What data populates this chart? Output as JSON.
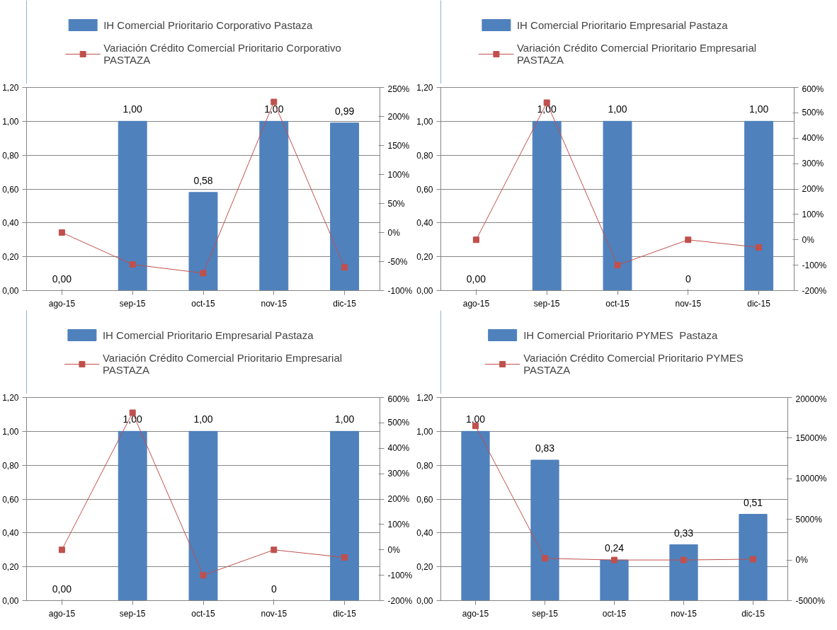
{
  "chart_data": [
    {
      "type": "bar",
      "categories": [
        "ago-15",
        "sep-15",
        "oct-15",
        "nov-15",
        "dic-15"
      ],
      "legend": "top",
      "grid": "y",
      "marker": "square",
      "line_style": "solid",
      "ylim": [
        0,
        1.2
      ],
      "yticks": [
        {
          "value": 0,
          "label": "0,00"
        },
        {
          "value": 0.2,
          "label": "0,20"
        },
        {
          "value": 0.4,
          "label": "0,40"
        },
        {
          "value": 0.6,
          "label": "0,60"
        },
        {
          "value": 0.8,
          "label": "0,80"
        },
        {
          "value": 1.0,
          "label": "1,00"
        },
        {
          "value": 1.2,
          "label": "1,20"
        }
      ],
      "y2lim": [
        -100,
        250
      ],
      "y2ticks": [
        {
          "value": -100,
          "label": "-100%"
        },
        {
          "value": -50,
          "label": "-50%"
        },
        {
          "value": 0,
          "label": "0%"
        },
        {
          "value": 50,
          "label": "50%"
        },
        {
          "value": 100,
          "label": "100%"
        },
        {
          "value": 150,
          "label": "150%"
        },
        {
          "value": 200,
          "label": "200%"
        },
        {
          "value": 250,
          "label": "250%"
        }
      ],
      "series": [
        {
          "name": "IH Comercial Prioritario Corporativo Pastaza",
          "color": "#4f81bd",
          "values": [
            0,
            1.0,
            0.58,
            1.0,
            0.99
          ],
          "value_labels": [
            "0,00",
            "1,00",
            "0,58",
            "1,00",
            "0,99"
          ]
        },
        {
          "name": "Variación Crédito Comercial Prioritario Corporativo PASTAZA",
          "type": "line",
          "axis": "y2",
          "color": "#c0504d",
          "values": [
            0,
            -55,
            -70,
            225,
            -60
          ]
        }
      ]
    },
    {
      "type": "bar",
      "categories": [
        "ago-15",
        "sep-15",
        "oct-15",
        "nov-15",
        "dic-15"
      ],
      "legend": "top",
      "grid": "y",
      "marker": "square",
      "line_style": "solid",
      "ylim": [
        0,
        1.2
      ],
      "yticks": [
        {
          "value": 0,
          "label": "0,00"
        },
        {
          "value": 0.2,
          "label": "0,20"
        },
        {
          "value": 0.4,
          "label": "0,40"
        },
        {
          "value": 0.6,
          "label": "0,60"
        },
        {
          "value": 0.8,
          "label": "0,80"
        },
        {
          "value": 1.0,
          "label": "1,00"
        },
        {
          "value": 1.2,
          "label": "1,20"
        }
      ],
      "y2lim": [
        -200,
        600
      ],
      "y2ticks": [
        {
          "value": -200,
          "label": "-200%"
        },
        {
          "value": -100,
          "label": "-100%"
        },
        {
          "value": 0,
          "label": "0%"
        },
        {
          "value": 100,
          "label": "100%"
        },
        {
          "value": 200,
          "label": "200%"
        },
        {
          "value": 300,
          "label": "300%"
        },
        {
          "value": 400,
          "label": "400%"
        },
        {
          "value": 500,
          "label": "500%"
        },
        {
          "value": 600,
          "label": "600%"
        }
      ],
      "series": [
        {
          "name": "IH Comercial Prioritario Empresarial Pastaza",
          "type": "bar",
          "color": "#4f81bd",
          "values": [
            0,
            1.0,
            1.0,
            0,
            1.0
          ],
          "value_labels": [
            "0,00",
            "1,00",
            "1,00",
            "0",
            "1,00"
          ]
        },
        {
          "name": "Variación Crédito Comercial Prioritario Empresarial PASTAZA",
          "type": "line",
          "axis": "y2",
          "color": "#c0504d",
          "values": [
            0,
            540,
            -100,
            0,
            -30
          ]
        }
      ]
    },
    {
      "type": "bar",
      "categories": [
        "ago-15",
        "sep-15",
        "oct-15",
        "nov-15",
        "dic-15"
      ],
      "legend": "top",
      "grid": "y",
      "marker": "square",
      "line_style": "solid",
      "ylim": [
        0,
        1.2
      ],
      "yticks": [
        {
          "value": 0,
          "label": "0,00"
        },
        {
          "value": 0.2,
          "label": "0,20"
        },
        {
          "value": 0.4,
          "label": "0,40"
        },
        {
          "value": 0.6,
          "label": "0,60"
        },
        {
          "value": 0.8,
          "label": "0,80"
        },
        {
          "value": 1.0,
          "label": "1,00"
        },
        {
          "value": 1.2,
          "label": "1,20"
        }
      ],
      "y2lim": [
        -200,
        600
      ],
      "y2ticks": [
        {
          "value": -200,
          "label": "-200%"
        },
        {
          "value": -100,
          "label": "-100%"
        },
        {
          "value": 0,
          "label": "0%"
        },
        {
          "value": 100,
          "label": "100%"
        },
        {
          "value": 200,
          "label": "200%"
        },
        {
          "value": 300,
          "label": "300%"
        },
        {
          "value": 400,
          "label": "400%"
        },
        {
          "value": 500,
          "label": "500%"
        },
        {
          "value": 600,
          "label": "600%"
        }
      ],
      "series": [
        {
          "name": "IH Comercial Prioritario Empresarial Pastaza",
          "type": "bar",
          "color": "#4f81bd",
          "values": [
            0,
            1.0,
            1.0,
            0,
            1.0
          ],
          "value_labels": [
            "0,00",
            "1,00",
            "1,00",
            "0",
            "1,00"
          ]
        },
        {
          "name": "Variación Crédito Comercial Prioritario Empresarial PASTAZA",
          "type": "line",
          "axis": "y2",
          "color": "#c0504d",
          "values": [
            0,
            540,
            -100,
            0,
            -30
          ]
        }
      ]
    },
    {
      "type": "bar",
      "categories": [
        "ago-15",
        "sep-15",
        "oct-15",
        "nov-15",
        "dic-15"
      ],
      "legend": "top",
      "grid": "y",
      "marker": "square",
      "line_style": "solid",
      "ylim": [
        0,
        1.2
      ],
      "yticks": [
        {
          "value": 0,
          "label": "0,00"
        },
        {
          "value": 0.2,
          "label": "0,20"
        },
        {
          "value": 0.4,
          "label": "0,40"
        },
        {
          "value": 0.6,
          "label": "0,60"
        },
        {
          "value": 0.8,
          "label": "0,80"
        },
        {
          "value": 1.0,
          "label": "1,00"
        },
        {
          "value": 1.2,
          "label": "1,20"
        }
      ],
      "y2lim": [
        -5000,
        20000
      ],
      "y2ticks": [
        {
          "value": -5000,
          "label": "-5000%"
        },
        {
          "value": 0,
          "label": "0%"
        },
        {
          "value": 5000,
          "label": "5000%"
        },
        {
          "value": 10000,
          "label": "10000%"
        },
        {
          "value": 15000,
          "label": "15000%"
        },
        {
          "value": 20000,
          "label": "20000%"
        }
      ],
      "series": [
        {
          "name": "IH Comercial Prioritario PYMES  Pastaza",
          "color": "#4f81bd",
          "values": [
            1.0,
            0.83,
            0.24,
            0.33,
            0.51
          ],
          "value_labels": [
            "1,00",
            "0,83",
            "0,24",
            "0,33",
            "0,51"
          ]
        },
        {
          "name": "Variación Crédito Comercial Prioritario PYMES PASTAZA",
          "type": "line",
          "axis": "y2",
          "color": "#c0504d",
          "values": [
            16500,
            200,
            0,
            0,
            100
          ]
        }
      ]
    }
  ]
}
